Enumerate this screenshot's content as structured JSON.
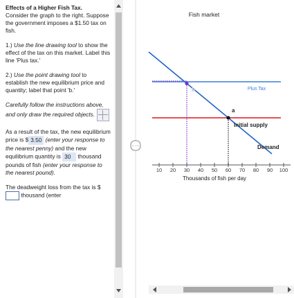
{
  "instructions": {
    "title": "Effects of a Higher Fish Tax.",
    "intro": "Consider the graph to the right. Suppose the government imposes a $1.50 tax on fish.",
    "step1": {
      "number": "1.)",
      "italic": "Use the line drawing tool",
      "rest": "to show the effect of the tax on this market. Label this line 'Plus tax.'"
    },
    "step2": {
      "number": "2.)",
      "italic": "Use the point drawing tool",
      "rest": "to establish the new equilibrium price and quantity; label that point 'b.'"
    },
    "note": "Carefully follow the instructions above, and only draw the required objects."
  },
  "questions": {
    "q1_pre": "As a result of the tax, the new equilibrium price is $",
    "q1_answer": "3.50",
    "q1_hint": "(enter your response to the nearest penny)",
    "q1_mid": "and the new equilibrium quantity is",
    "q2_answer": "30",
    "q2_post": "thousand pounds of fish",
    "q2_hint": "(enter your response to the nearest pound).",
    "q3_pre": "The deadweight loss from the tax is $",
    "q3_post": "thousand (enter"
  },
  "graph": {
    "title": "Fish market",
    "xlabel": "Thousands of fish per day",
    "xlim": [
      5,
      105
    ],
    "xticks": [
      10,
      20,
      30,
      40,
      50,
      60,
      70,
      80,
      90,
      100
    ],
    "lines": {
      "tax": "Plus Tax",
      "supply": "Initial supply",
      "demand": "Demand"
    },
    "points": [
      {
        "label": "b",
        "x": 30
      },
      {
        "label": "a",
        "x": 60
      }
    ]
  }
}
